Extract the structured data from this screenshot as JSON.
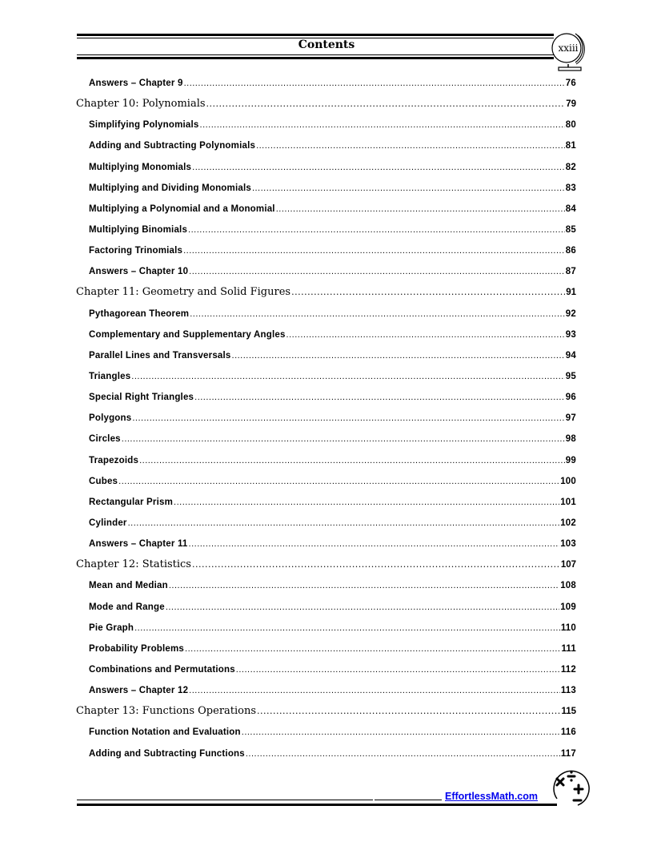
{
  "header": {
    "title": "Contents",
    "page_number": "xxiii"
  },
  "toc": [
    {
      "level": "section",
      "label": "Answers – Chapter 9",
      "page": "76"
    },
    {
      "level": "chapter",
      "label": "Chapter 10: Polynomials",
      "page": "79"
    },
    {
      "level": "section",
      "label": "Simplifying Polynomials",
      "page": "80"
    },
    {
      "level": "section",
      "label": "Adding and Subtracting Polynomials",
      "page": "81"
    },
    {
      "level": "section",
      "label": "Multiplying Monomials",
      "page": "82"
    },
    {
      "level": "section",
      "label": "Multiplying and Dividing Monomials",
      "page": "83"
    },
    {
      "level": "section",
      "label": "Multiplying a Polynomial and a Monomial",
      "page": "84"
    },
    {
      "level": "section",
      "label": "Multiplying Binomials",
      "page": "85"
    },
    {
      "level": "section",
      "label": "Factoring Trinomials",
      "page": "86"
    },
    {
      "level": "section",
      "label": "Answers – Chapter 10",
      "page": "87"
    },
    {
      "level": "chapter",
      "label": "Chapter 11: Geometry and Solid Figures",
      "page": "91"
    },
    {
      "level": "section",
      "label": "Pythagorean Theorem",
      "page": "92"
    },
    {
      "level": "section",
      "label": "Complementary and Supplementary Angles",
      "page": "93"
    },
    {
      "level": "section",
      "label": "Parallel Lines and Transversals",
      "page": "94"
    },
    {
      "level": "section",
      "label": "Triangles",
      "page": "95"
    },
    {
      "level": "section",
      "label": "Special Right Triangles",
      "page": "96"
    },
    {
      "level": "section",
      "label": "Polygons",
      "page": "97"
    },
    {
      "level": "section",
      "label": "Circles",
      "page": "98"
    },
    {
      "level": "section",
      "label": "Trapezoids",
      "page": "99"
    },
    {
      "level": "section",
      "label": "Cubes",
      "page": "100"
    },
    {
      "level": "section",
      "label": "Rectangular Prism",
      "page": "101"
    },
    {
      "level": "section",
      "label": "Cylinder",
      "page": "102"
    },
    {
      "level": "section",
      "label": "Answers – Chapter 11",
      "page": "103"
    },
    {
      "level": "chapter",
      "label": "Chapter 12: Statistics",
      "page": "107"
    },
    {
      "level": "section",
      "label": "Mean and Median",
      "page": "108"
    },
    {
      "level": "section",
      "label": "Mode and Range",
      "page": "109"
    },
    {
      "level": "section",
      "label": "Pie Graph",
      "page": "110"
    },
    {
      "level": "section",
      "label": "Probability Problems",
      "page": "111"
    },
    {
      "level": "section",
      "label": "Combinations and Permutations",
      "page": "112"
    },
    {
      "level": "section",
      "label": "Answers – Chapter 12",
      "page": "113"
    },
    {
      "level": "chapter",
      "label": "Chapter 13: Functions Operations",
      "page": "115"
    },
    {
      "level": "section",
      "label": "Function Notation and Evaluation",
      "page": "116"
    },
    {
      "level": "section",
      "label": "Adding and Subtracting Functions",
      "page": "117"
    }
  ],
  "footer": {
    "site": "EffortlessMath.com",
    "logo_icon": "math-operators-icon",
    "link_color": "#0000ee"
  }
}
